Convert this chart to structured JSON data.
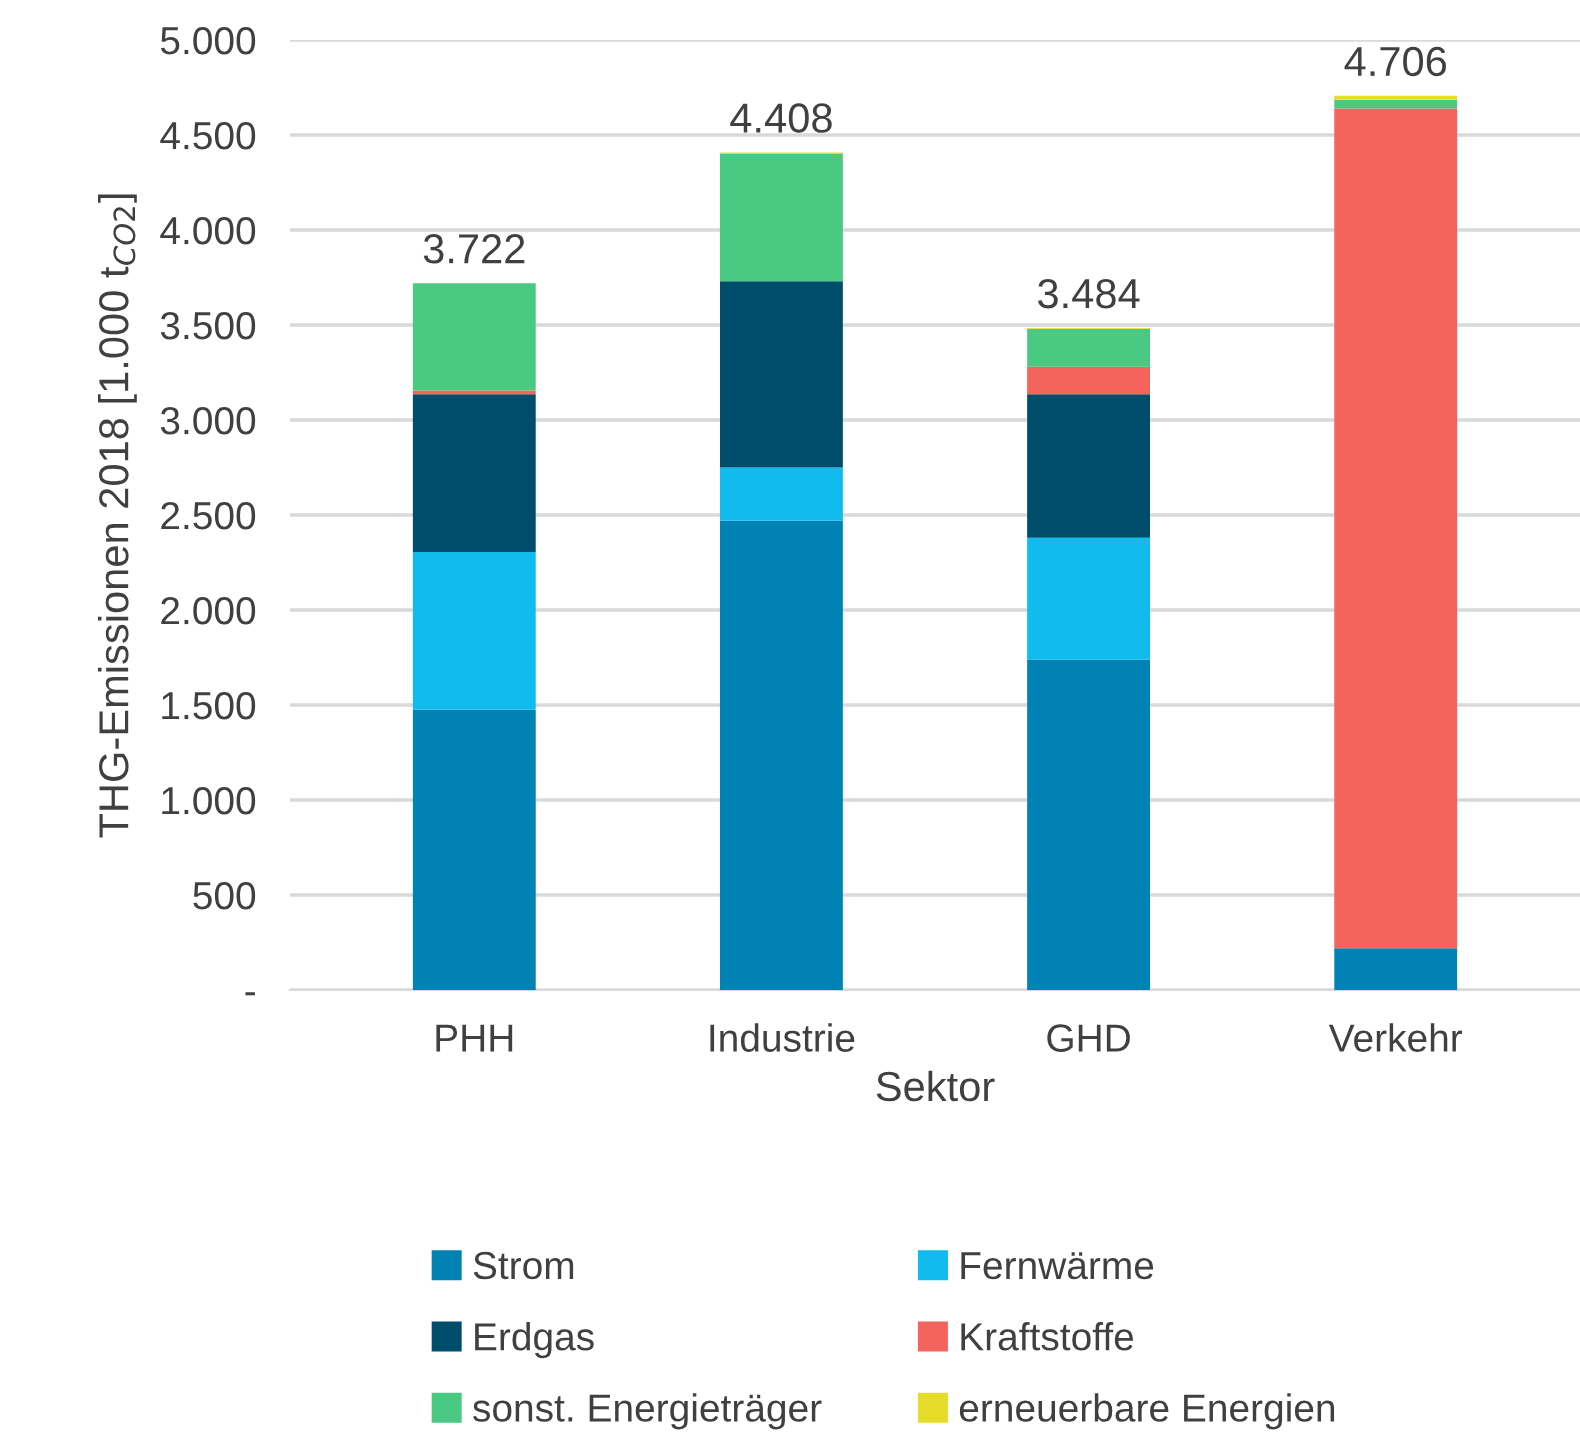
{
  "chart_data": {
    "type": "bar",
    "stacked": true,
    "xlabel": "Sektor",
    "ylabel": "THG-Emissionen 2018 [1.000 t$_{CO2}$]",
    "categories": [
      "PHH",
      "Industrie",
      "GHD",
      "Verkehr"
    ],
    "series": [
      {
        "name": "Strom",
        "color": "#0082b4",
        "values": [
          1475,
          2470,
          1740,
          220
        ]
      },
      {
        "name": "Fernwärme",
        "color": "#12bbee",
        "values": [
          830,
          280,
          640,
          0
        ]
      },
      {
        "name": "Erdgas",
        "color": "#004d6b",
        "values": [
          830,
          980,
          755,
          0
        ]
      },
      {
        "name": "Kraftstoffe",
        "color": "#f4645d",
        "values": [
          20,
          0,
          145,
          4420
        ]
      },
      {
        "name": "sonst. Energieträger",
        "color": "#4ac983",
        "values": [
          565,
          670,
          200,
          45
        ]
      },
      {
        "name": "erneuerbare Energien",
        "color": "#e6dc2a",
        "values": [
          null,
          8,
          4,
          21
        ]
      }
    ],
    "totals": [
      "3.722",
      "4.408",
      "3.484",
      "4.706"
    ],
    "ylim": [
      0,
      5000
    ],
    "yticks": [
      {
        "value": 0,
        "label": "-"
      },
      {
        "value": 500,
        "label": "500"
      },
      {
        "value": 1000,
        "label": "1.000"
      },
      {
        "value": 1500,
        "label": "1.500"
      },
      {
        "value": 2000,
        "label": "2.000"
      },
      {
        "value": 2500,
        "label": "2.500"
      },
      {
        "value": 3000,
        "label": "3.000"
      },
      {
        "value": 3500,
        "label": "3.500"
      },
      {
        "value": 4000,
        "label": "4.000"
      },
      {
        "value": 4500,
        "label": "4.500"
      },
      {
        "value": 5000,
        "label": "5.000"
      }
    ],
    "grid": "y",
    "legend": "bottom"
  }
}
